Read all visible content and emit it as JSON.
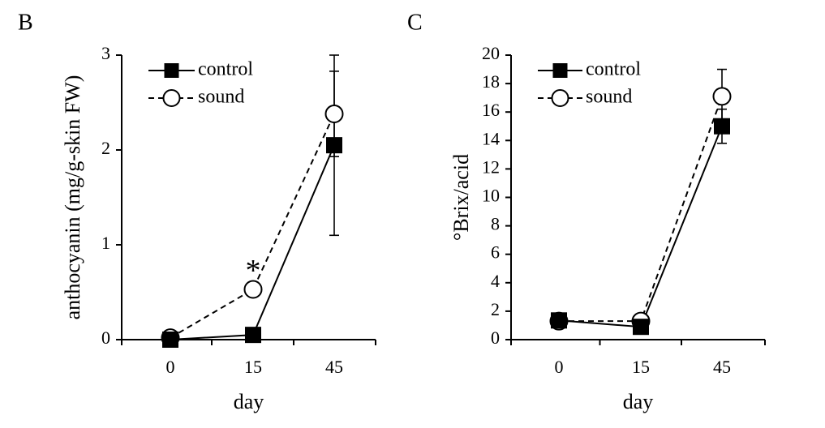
{
  "chart_data": [
    {
      "panel": "B",
      "type": "line",
      "xlabel": "day",
      "ylabel": "anthocyanin (mg/g-skin FW)",
      "categories": [
        "0",
        "15",
        "45"
      ],
      "ylim": [
        0,
        3
      ],
      "yticks": [
        0,
        1,
        2,
        3
      ],
      "legend_position": "top-left",
      "grid": false,
      "series": [
        {
          "name": "control",
          "marker": "filled-square",
          "line": "solid",
          "values": [
            0.0,
            0.05,
            2.05
          ],
          "errors": [
            0.0,
            0.0,
            0.95
          ]
        },
        {
          "name": "sound",
          "marker": "open-circle",
          "line": "dashed",
          "values": [
            0.02,
            0.53,
            2.38
          ],
          "errors": [
            0.0,
            0.0,
            0.45
          ]
        }
      ],
      "annotations": [
        {
          "text": "*",
          "category": "15",
          "y": 0.8
        }
      ]
    },
    {
      "panel": "C",
      "type": "line",
      "xlabel": "day",
      "ylabel": "°Brix/acid",
      "categories": [
        "0",
        "15",
        "45"
      ],
      "ylim": [
        0,
        20
      ],
      "yticks": [
        0,
        2,
        4,
        6,
        8,
        10,
        12,
        14,
        16,
        18,
        20
      ],
      "legend_position": "top-left",
      "grid": false,
      "series": [
        {
          "name": "control",
          "marker": "filled-square",
          "line": "solid",
          "values": [
            1.35,
            0.9,
            15.0
          ],
          "errors": [
            0.0,
            0.0,
            1.2
          ]
        },
        {
          "name": "sound",
          "marker": "open-circle",
          "line": "dashed",
          "values": [
            1.3,
            1.3,
            17.1
          ],
          "errors": [
            0.0,
            0.0,
            1.9
          ]
        }
      ],
      "annotations": []
    }
  ]
}
